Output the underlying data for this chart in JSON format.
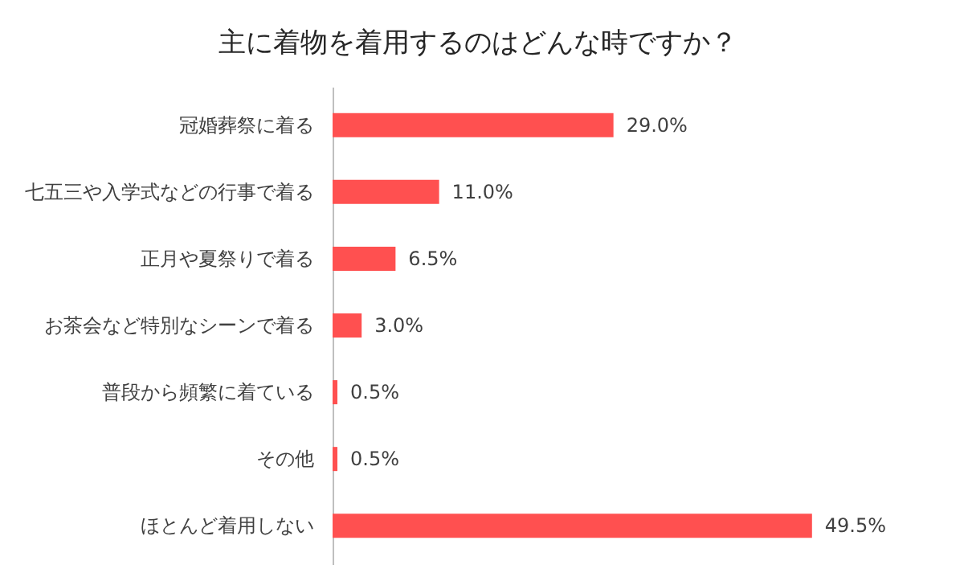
{
  "chart_data": {
    "type": "bar",
    "orientation": "horizontal",
    "title": "主に着物を着用するのはどんな時ですか？",
    "categories": [
      "冠婚葬祭に着る",
      "七五三や入学式などの行事で着る",
      "正月や夏祭りで着る",
      "お茶会など特別なシーンで着る",
      "普段から頻繁に着ている",
      "その他",
      "ほとんど着用しない"
    ],
    "values": [
      29.0,
      11.0,
      6.5,
      3.0,
      0.5,
      0.5,
      49.5
    ],
    "value_labels": [
      "29.0%",
      "11.0%",
      "6.5%",
      "3.0%",
      "0.5%",
      "0.5%",
      "49.5%"
    ],
    "color": "#ff5050",
    "tick_labels": "y"
  }
}
